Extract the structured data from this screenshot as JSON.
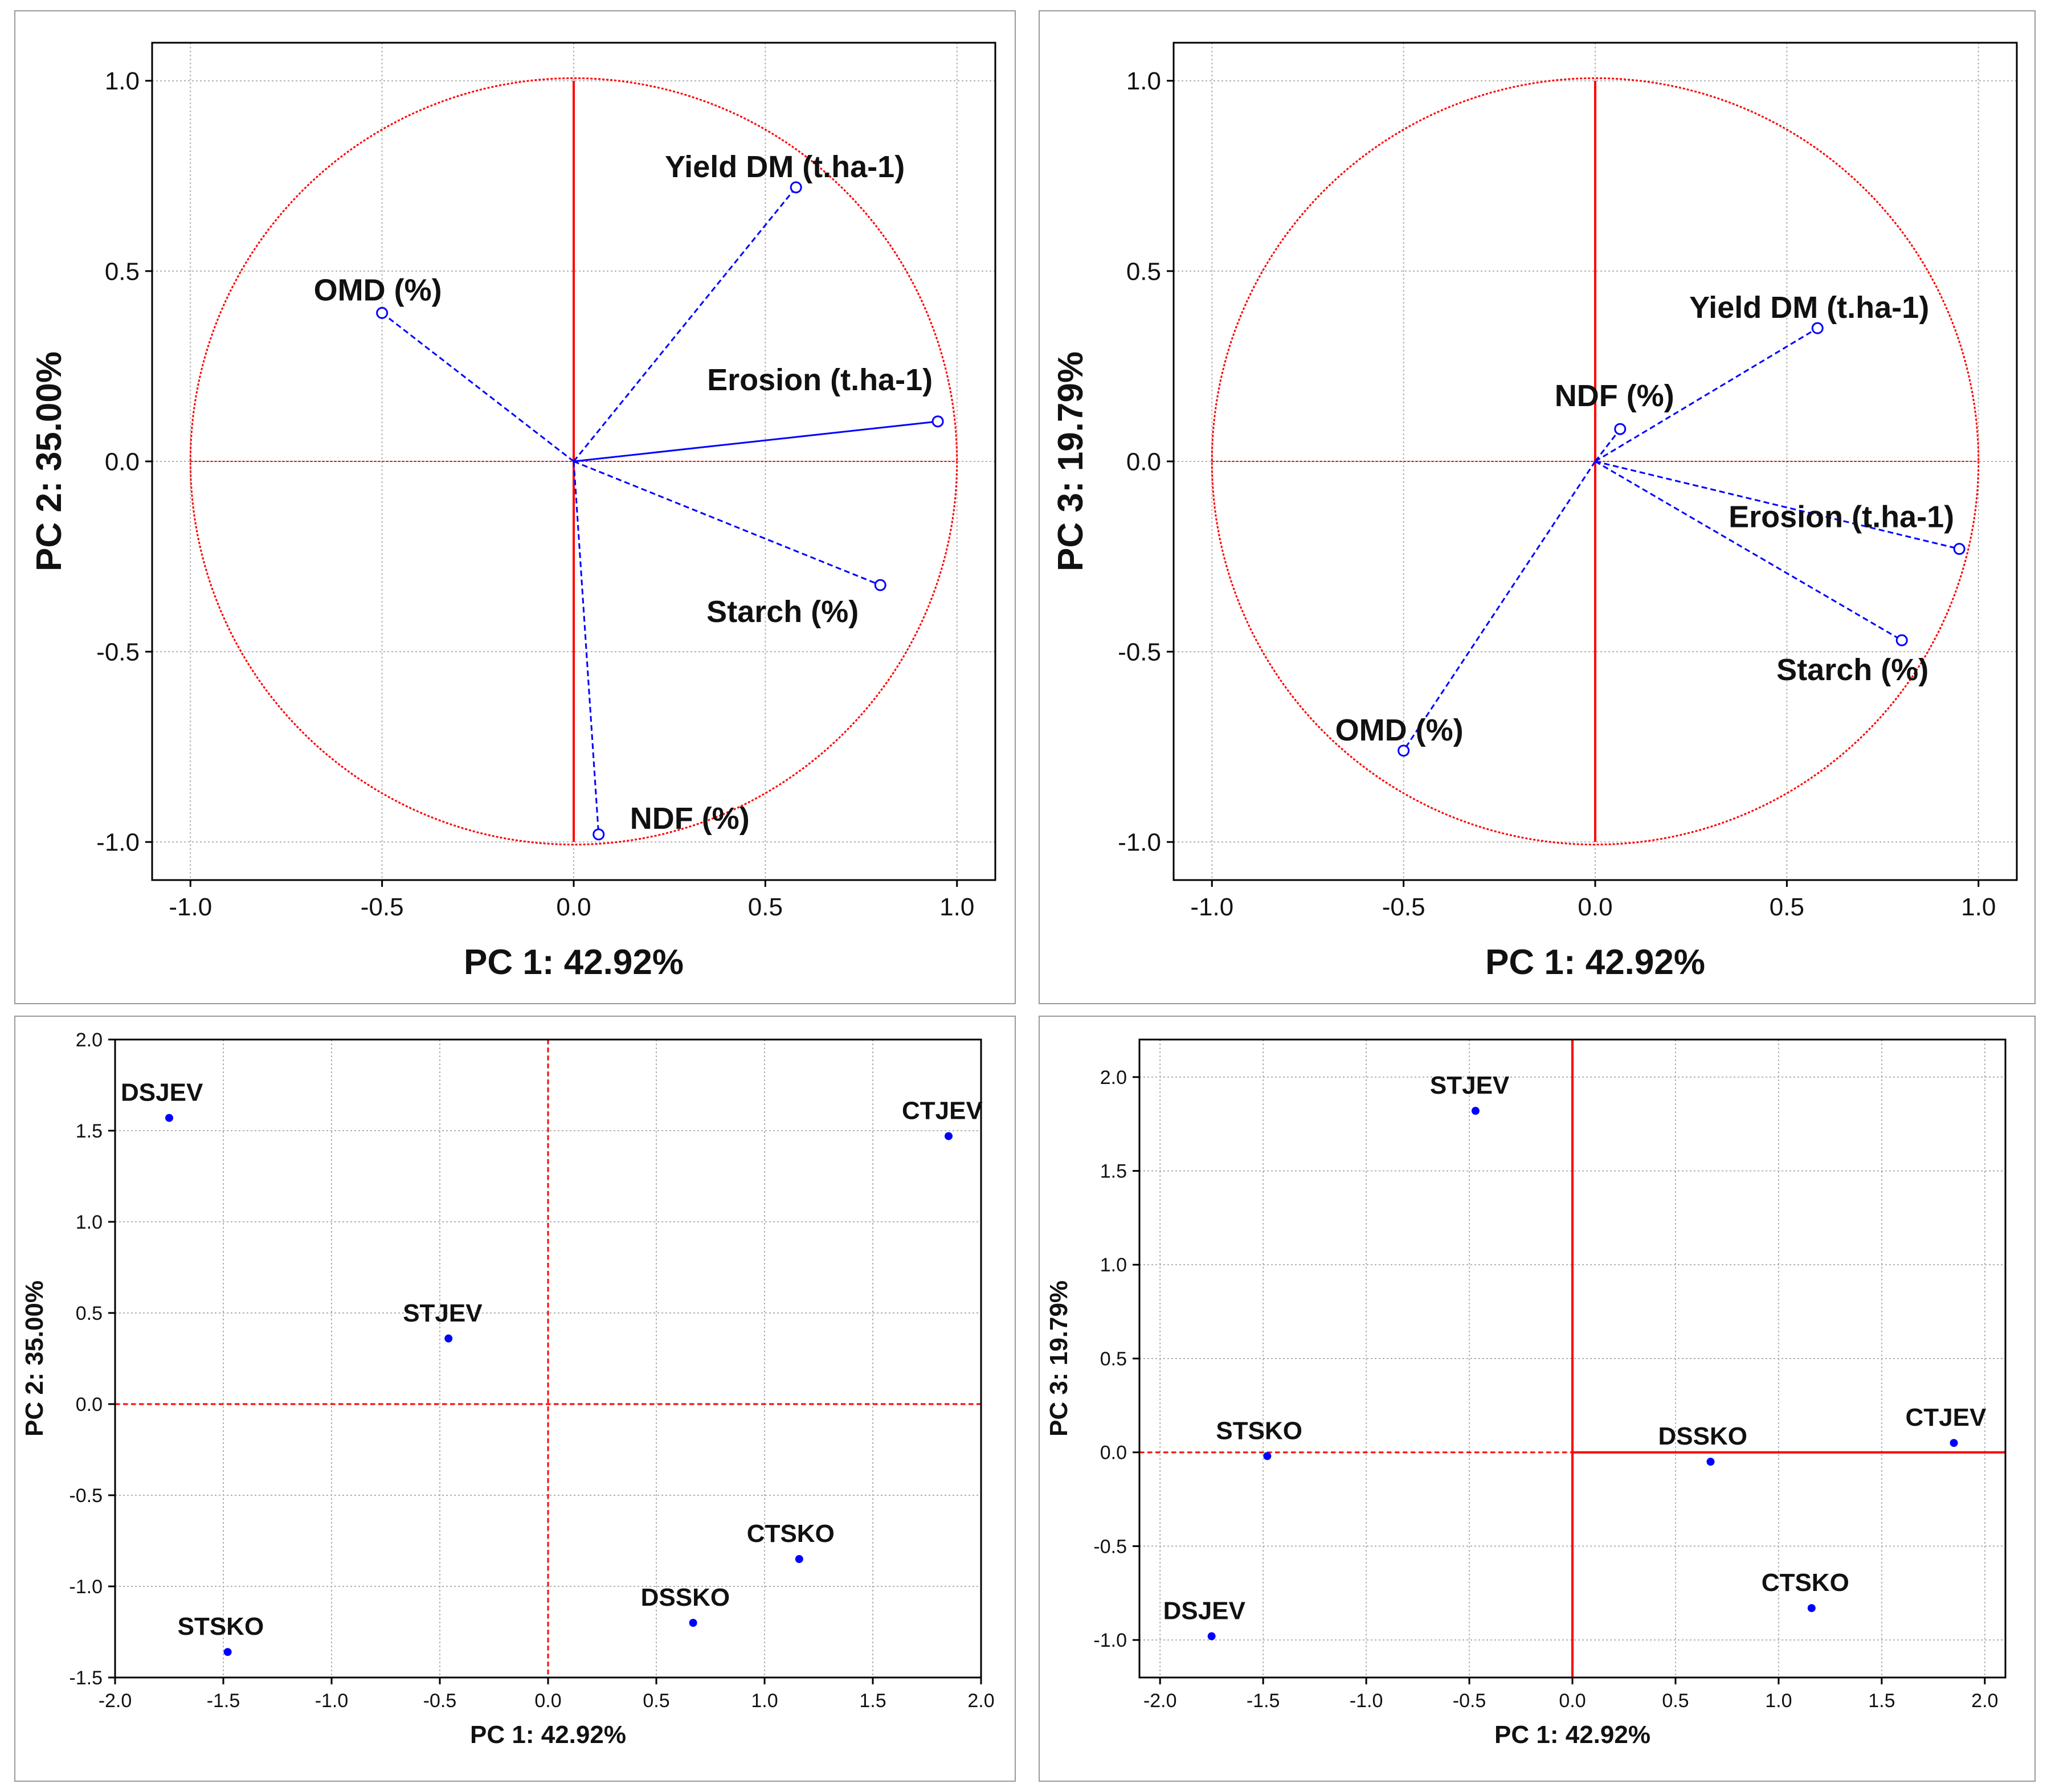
{
  "chart_data": [
    {
      "type": "scatter",
      "subtype": "loading-circle",
      "xlabel": "PC 1: 42.92%",
      "ylabel": "PC 2: 35.00%",
      "xlim": [
        -1.1,
        1.1
      ],
      "ylim": [
        -1.1,
        1.1
      ],
      "xticks": [
        "-1.0",
        "-0.5",
        "0.0",
        "0.5",
        "1.0"
      ],
      "yticks": [
        "1.0",
        "0.5",
        "0.0",
        "-0.5",
        "-1.0"
      ],
      "grid": true,
      "points": [
        {
          "label": "Yield DM (t.ha-1)",
          "x": 0.58,
          "y": 0.72
        },
        {
          "label": "OMD (%)",
          "x": -0.5,
          "y": 0.39
        },
        {
          "label": "Erosion (t.ha-1)",
          "x": 0.95,
          "y": 0.105
        },
        {
          "label": "Starch (%)",
          "x": 0.8,
          "y": -0.325
        },
        {
          "label": "NDF (%)",
          "x": 0.065,
          "y": -0.98
        }
      ]
    },
    {
      "type": "scatter",
      "subtype": "loading-circle",
      "xlabel": "PC 1: 42.92%",
      "ylabel": "PC 3: 19.79%",
      "xlim": [
        -1.1,
        1.1
      ],
      "ylim": [
        -1.1,
        1.1
      ],
      "xticks": [
        "-1.0",
        "-0.5",
        "0.0",
        "0.5",
        "1.0"
      ],
      "yticks": [
        "1.0",
        "0.5",
        "0.0",
        "-0.5",
        "-1.0"
      ],
      "grid": true,
      "points": [
        {
          "label": "Yield DM (t.ha-1)",
          "x": 0.58,
          "y": 0.35
        },
        {
          "label": "NDF (%)",
          "x": 0.065,
          "y": 0.085
        },
        {
          "label": "Erosion (t.ha-1)",
          "x": 0.95,
          "y": -0.23
        },
        {
          "label": "Starch (%)",
          "x": 0.8,
          "y": -0.47
        },
        {
          "label": "OMD (%)",
          "x": -0.5,
          "y": -0.76
        }
      ]
    },
    {
      "type": "scatter",
      "subtype": "scores",
      "xlabel": "PC 1: 42.92%",
      "ylabel": "PC 2: 35.00%",
      "xlim": [
        -2.0,
        2.0
      ],
      "ylim": [
        -1.5,
        2.0
      ],
      "xticks": [
        "-2.0",
        "-1.5",
        "-1.0",
        "-0.5",
        "0.0",
        "0.5",
        "1.0",
        "1.5",
        "2.0"
      ],
      "yticks": [
        "2.0",
        "1.5",
        "1.0",
        "0.5",
        "0.0",
        "-0.5",
        "-1.0",
        "-1.5"
      ],
      "grid": true,
      "points": [
        {
          "label": "DSJEV",
          "x": -1.75,
          "y": 1.57
        },
        {
          "label": "CTJEV",
          "x": 1.85,
          "y": 1.47
        },
        {
          "label": "STJEV",
          "x": -0.46,
          "y": 0.36
        },
        {
          "label": "CTSKO",
          "x": 1.16,
          "y": -0.85
        },
        {
          "label": "DSSKO",
          "x": 0.67,
          "y": -1.2
        },
        {
          "label": "STSKO",
          "x": -1.48,
          "y": -1.36
        }
      ]
    },
    {
      "type": "scatter",
      "subtype": "scores",
      "xlabel": "PC 1: 42.92%",
      "ylabel": "PC 3: 19.79%",
      "xlim": [
        -2.1,
        2.1
      ],
      "ylim": [
        -1.2,
        2.2
      ],
      "xticks": [
        "-2.0",
        "-1.5",
        "-1.0",
        "-0.5",
        "0.0",
        "0.5",
        "1.0",
        "1.5",
        "2.0"
      ],
      "yticks": [
        "2.0",
        "1.5",
        "1.0",
        "0.5",
        "0.0",
        "-0.5",
        "-1.0"
      ],
      "grid": true,
      "points": [
        {
          "label": "STJEV",
          "x": -0.47,
          "y": 1.82
        },
        {
          "label": "STSKO",
          "x": -1.48,
          "y": -0.02
        },
        {
          "label": "DSSKO",
          "x": 0.67,
          "y": -0.05
        },
        {
          "label": "CTJEV",
          "x": 1.85,
          "y": 0.05
        },
        {
          "label": "CTSKO",
          "x": 1.16,
          "y": -0.83
        },
        {
          "label": "DSJEV",
          "x": -1.75,
          "y": -0.98
        }
      ]
    }
  ],
  "colors": {
    "axis_red": "#ff0000",
    "vector_blue": "#0000ff",
    "grid": "#b0b0b0",
    "frame": "#000000"
  }
}
